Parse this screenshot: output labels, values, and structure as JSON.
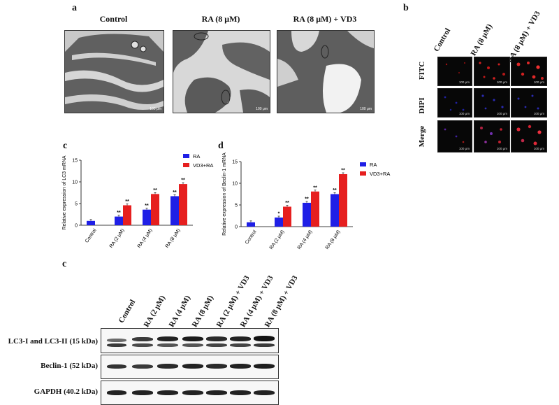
{
  "panels": {
    "a": {
      "letter": "a",
      "headers": [
        "Control",
        "RA (8 μM)",
        "RA (8 μM) + VD3"
      ],
      "scale_bar": "100 μm"
    },
    "b": {
      "letter": "b",
      "columns": [
        "Control",
        "RA (8 μM)",
        "RA (8 μM) + VD3"
      ],
      "rows": [
        "FITC",
        "DIPI",
        "Merge"
      ],
      "scale_bar": "100 μm"
    },
    "c_chart": {
      "letter": "c"
    },
    "d_chart": {
      "letter": "d"
    },
    "western": {
      "letter": "c",
      "lanes": [
        "Control",
        "RA (2 μM)",
        "RA (4 μM)",
        "RA (8 μM)",
        "RA (2 μM) + VD3",
        "RA (4 μM) + VD3",
        "RA (8 μM) + VD3"
      ],
      "rows": [
        "LC3-I and LC3-II (15 kDa)",
        "Beclin-1 (52 kDa)",
        "GAPDH (40.2 kDa)"
      ]
    }
  },
  "chart_data": [
    {
      "type": "bar",
      "ylabel": "Relative expression of LC3 mRNA",
      "ylim": [
        0,
        15
      ],
      "yticks": [
        0,
        5,
        10,
        15
      ],
      "categories": [
        "Control",
        "RA (2 μM)",
        "RA (4 μM)",
        "RA (8 μM)"
      ],
      "series": [
        {
          "name": "RA",
          "color": "#1f1fe6",
          "values": [
            1.0,
            2.0,
            3.6,
            6.7
          ],
          "labels": [
            "",
            "**",
            "**",
            "**"
          ]
        },
        {
          "name": "VD3+RA",
          "color": "#e61f1f",
          "values": [
            null,
            4.6,
            7.2,
            9.5
          ],
          "labels": [
            "",
            "**",
            "**",
            "**"
          ]
        }
      ],
      "legend": "top-right"
    },
    {
      "type": "bar",
      "ylabel": "Relative expression of Beclin-1 mRNA",
      "ylim": [
        0,
        15
      ],
      "yticks": [
        0,
        5,
        10,
        15
      ],
      "categories": [
        "Control",
        "RA (2 μM)",
        "RA (4 μM)",
        "RA (8 μM)"
      ],
      "series": [
        {
          "name": "RA",
          "color": "#1f1fe6",
          "values": [
            1.0,
            2.1,
            5.5,
            7.5
          ],
          "labels": [
            "",
            "*",
            "**",
            "**"
          ]
        },
        {
          "name": "VD3+RA",
          "color": "#e61f1f",
          "values": [
            null,
            4.6,
            8.1,
            12.1
          ],
          "labels": [
            "",
            "**",
            "**",
            "**"
          ]
        }
      ],
      "legend": "top-right"
    }
  ]
}
